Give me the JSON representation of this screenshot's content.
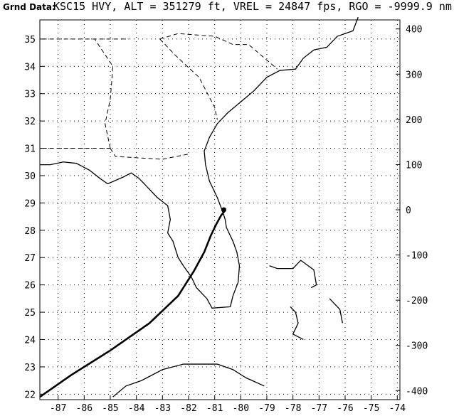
{
  "header": {
    "label": "Grnd Data:",
    "readout": "KSC15 HVY, ALT = 351279 ft, VREL = 24847 fps, RGO = -9999.9 nm"
  },
  "axes": {
    "longitude_ticks": [
      "-87",
      "-86",
      "-85",
      "-84",
      "-83",
      "-82",
      "-81",
      "-80",
      "-79",
      "-78",
      "-77",
      "-76",
      "-75",
      "-74"
    ],
    "latitude_ticks": [
      "35",
      "34",
      "33",
      "32",
      "31",
      "30",
      "29",
      "28",
      "27",
      "26",
      "25",
      "24",
      "23",
      "22"
    ],
    "range_ticks": [
      "400",
      "300",
      "200",
      "100",
      "0",
      "-100",
      "-200",
      "-300",
      "-400"
    ]
  },
  "map_view": {
    "lon_range": [
      -87.7,
      -73.9
    ],
    "lat_range": [
      21.8,
      35.7
    ],
    "range_axis_nm": [
      -420,
      420
    ],
    "grid": "dotted"
  },
  "trajectory": {
    "description_color": "#000000",
    "points_lonlat": [
      [
        -87.7,
        21.9
      ],
      [
        -86.5,
        22.7
      ],
      [
        -85.0,
        23.6
      ],
      [
        -83.5,
        24.6
      ],
      [
        -82.4,
        25.6
      ],
      [
        -81.8,
        26.5
      ],
      [
        -81.4,
        27.2
      ],
      [
        -81.15,
        27.8
      ],
      [
        -80.95,
        28.2
      ],
      [
        -80.75,
        28.55
      ],
      [
        -80.62,
        28.7
      ]
    ]
  },
  "launch_site_marker": {
    "lon": -80.65,
    "lat": 28.75
  }
}
